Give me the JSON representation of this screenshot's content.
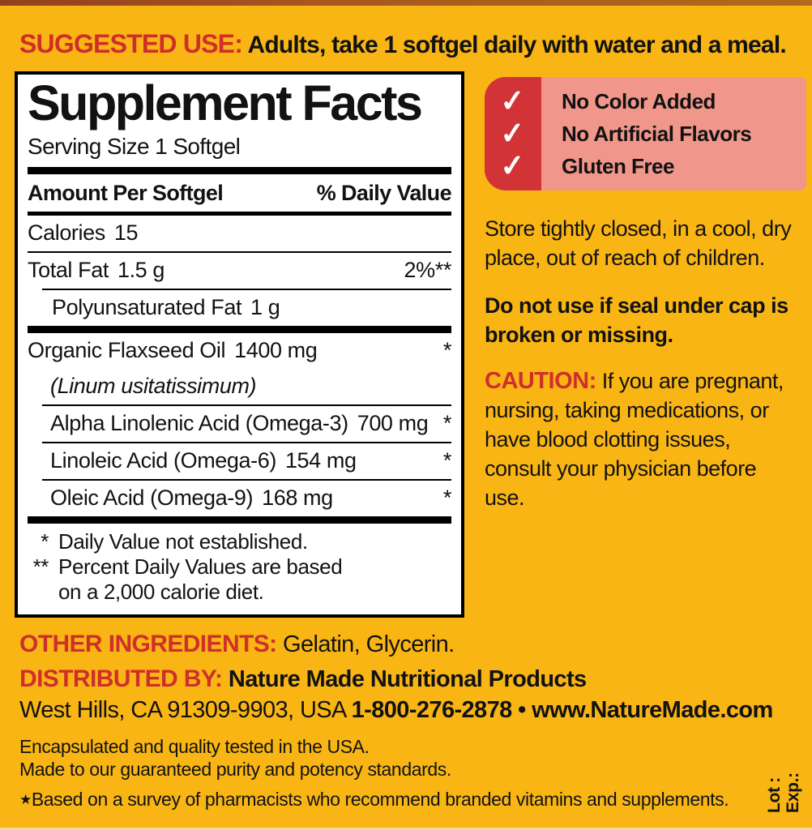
{
  "colors": {
    "background_yellow": "#F9B514",
    "accent_red": "#CE2F2B",
    "badge_red": "#D23337",
    "badge_pink": "#F0968B",
    "panel_white": "#FFFFFF",
    "text_black": "#121212"
  },
  "icons": {
    "check": "✓"
  },
  "suggested_use": {
    "label": "SUGGESTED USE:",
    "text": "Adults, take 1 softgel daily with water and a meal."
  },
  "panel": {
    "title": "Supplement Facts",
    "serving_size": "Serving Size 1 Softgel",
    "header": {
      "amount": "Amount Per Softgel",
      "daily_value": "% Daily Value"
    },
    "rows": [
      {
        "name": "Calories",
        "amount": "15",
        "dv": ""
      },
      {
        "name": "Total Fat",
        "amount": "1.5 g",
        "dv": "2%**"
      },
      {
        "name": "Polyunsaturated Fat",
        "amount": "1 g",
        "dv": ""
      },
      {
        "name": "Organic Flaxseed Oil",
        "amount": "1400 mg",
        "dv": "*"
      },
      {
        "name": "(Linum usitatissimum)",
        "amount": "",
        "dv": ""
      },
      {
        "name": "Alpha Linolenic Acid (Omega-3)",
        "amount": "700 mg",
        "dv": "*"
      },
      {
        "name": "Linoleic Acid (Omega-6)",
        "amount": "154 mg",
        "dv": "*"
      },
      {
        "name": "Oleic Acid (Omega-9)",
        "amount": "168 mg",
        "dv": "*"
      }
    ],
    "footnotes": [
      {
        "symbol": "*",
        "text": "Daily Value not established."
      },
      {
        "symbol": "**",
        "text": "Percent Daily Values are based on a 2,000 calorie diet."
      }
    ]
  },
  "badge": {
    "items": [
      "No Color Added",
      "No Artificial Flavors",
      "Gluten Free"
    ]
  },
  "right": {
    "storage": "Store tightly closed, in a cool, dry place, out of reach of children.",
    "seal_warning": "Do not use if seal under cap is broken or missing.",
    "caution_label": "CAUTION:",
    "caution_text": "If you are pregnant, nursing, taking medications, or have blood clotting issues, consult your physician before use."
  },
  "footer": {
    "other_label": "OTHER INGREDIENTS:",
    "other_text": "Gelatin, Glycerin.",
    "dist_label": "DISTRIBUTED BY:",
    "dist_company": "Nature Made Nutritional Products",
    "address": "West Hills, CA 91309-9903, USA",
    "phone": "1-800-276-2878",
    "bullet": "•",
    "website": "www.NatureMade.com",
    "quality": [
      "Encapsulated and quality tested in the USA.",
      "Made to our guaranteed purity and potency standards."
    ],
    "survey_star": "★",
    "survey_text": "Based on a survey of pharmacists who recommend branded vitamins and supplements.",
    "lot": "Lot :",
    "exp": "Exp.:"
  }
}
